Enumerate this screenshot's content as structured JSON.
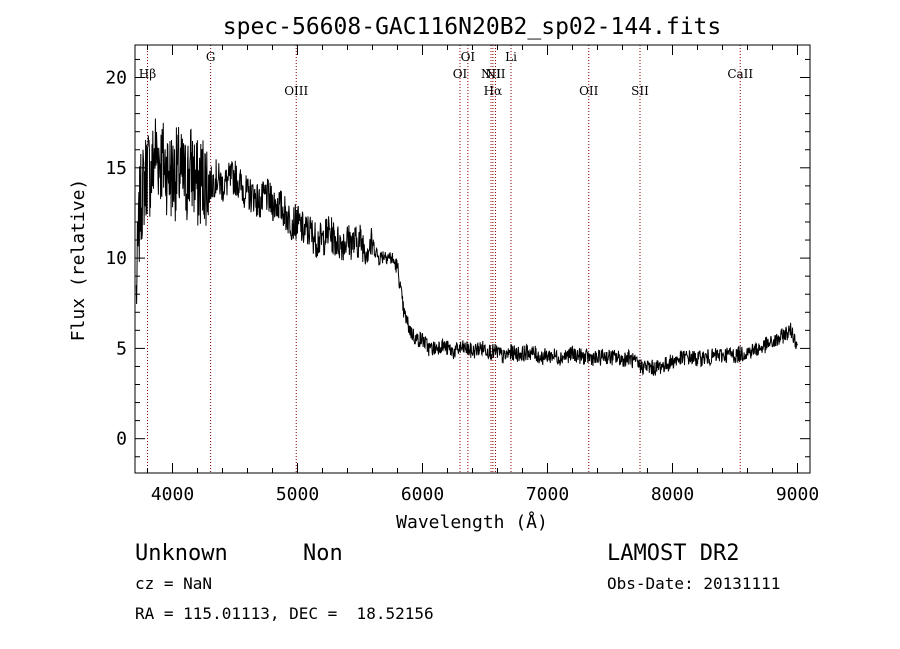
{
  "chart_data": {
    "type": "line",
    "title": "spec-56608-GAC116N20B2_sp02-144.fits",
    "xlabel": "Wavelength (Å)",
    "ylabel": "Flux (relative)",
    "xlim": [
      3700,
      9100
    ],
    "ylim": [
      -1.9,
      21.8
    ],
    "xticks": [
      4000,
      5000,
      6000,
      7000,
      8000,
      9000
    ],
    "yticks": [
      0,
      5,
      10,
      15,
      20
    ],
    "grid": false,
    "line_color": "#000000",
    "marker_color": "#8b0000",
    "lines": [
      {
        "label": "Hβ",
        "x": 3800,
        "row": 1
      },
      {
        "label": "G",
        "x": 4305,
        "row": 0
      },
      {
        "label": "OIII",
        "x": 4990,
        "row": 2
      },
      {
        "label": "OI",
        "x": 6300,
        "row": 1
      },
      {
        "label": "OI",
        "x": 6363,
        "row": 0
      },
      {
        "label": "NII",
        "x": 6548,
        "row": 1
      },
      {
        "label": "Hα",
        "x": 6563,
        "row": 2
      },
      {
        "label": "NII",
        "x": 6584,
        "row": 1
      },
      {
        "label": "Li",
        "x": 6708,
        "row": 0
      },
      {
        "label": "OII",
        "x": 7330,
        "row": 2
      },
      {
        "label": "SII",
        "x": 7740,
        "row": 2
      },
      {
        "label": "CaII",
        "x": 8542,
        "row": 1
      }
    ],
    "series": [
      {
        "x": [
          3710,
          3740,
          3770,
          3800,
          3830,
          3860,
          3900,
          3950,
          4000,
          4050,
          4100,
          4150,
          4200,
          4250,
          4300,
          4350,
          4400,
          4450,
          4500,
          4550,
          4600,
          4650,
          4700,
          4750,
          4800,
          4850,
          4900,
          4950,
          5000,
          5050,
          5100,
          5150,
          5200,
          5250,
          5300,
          5350,
          5400,
          5450,
          5500,
          5550,
          5600,
          5650,
          5700,
          5750,
          5800,
          5850,
          5900,
          5950,
          6000,
          6050,
          6100,
          6150,
          6200,
          6250,
          6300,
          6350,
          6400,
          6450,
          6500,
          6550,
          6600,
          6650,
          6700,
          6750,
          6800,
          6850,
          6900,
          6950,
          7000,
          7050,
          7100,
          7150,
          7200,
          7250,
          7300,
          7350,
          7400,
          7450,
          7500,
          7550,
          7600,
          7650,
          7700,
          7750,
          7800,
          7850,
          7900,
          7950,
          8000,
          8050,
          8100,
          8150,
          8200,
          8250,
          8300,
          8350,
          8400,
          8450,
          8500,
          8550,
          8600,
          8650,
          8700,
          8750,
          8800,
          8850,
          8900,
          8950,
          9000
        ],
        "y": [
          8.0,
          13.0,
          14.0,
          15.0,
          14.5,
          16.0,
          15.5,
          15.0,
          14.5,
          14.8,
          14.2,
          15.0,
          14.0,
          14.5,
          14.0,
          14.5,
          14.0,
          14.3,
          14.5,
          14.0,
          13.5,
          13.5,
          13.0,
          13.5,
          13.0,
          13.0,
          12.5,
          12.0,
          12.0,
          11.5,
          11.5,
          11.0,
          11.0,
          11.5,
          11.0,
          10.8,
          11.0,
          10.8,
          11.0,
          10.5,
          10.8,
          10.0,
          10.2,
          10.0,
          9.5,
          7.0,
          6.0,
          5.5,
          5.5,
          5.0,
          5.0,
          5.2,
          5.0,
          4.8,
          5.0,
          5.0,
          4.8,
          5.0,
          5.0,
          4.8,
          4.8,
          4.5,
          4.8,
          4.7,
          4.7,
          4.8,
          4.7,
          4.5,
          4.6,
          4.6,
          4.5,
          4.6,
          4.7,
          4.6,
          4.5,
          4.5,
          4.4,
          4.6,
          4.5,
          4.5,
          4.4,
          4.5,
          4.2,
          4.0,
          4.0,
          3.9,
          4.0,
          4.1,
          4.3,
          4.4,
          4.5,
          4.5,
          4.4,
          4.5,
          4.5,
          4.6,
          4.6,
          4.7,
          4.6,
          4.7,
          4.8,
          4.9,
          5.0,
          5.2,
          5.3,
          5.5,
          5.8,
          6.0,
          5.2
        ]
      }
    ]
  },
  "footer": {
    "class_label": "Unknown",
    "subclass_label": "Non",
    "survey": "LAMOST DR2",
    "cz": "cz = NaN",
    "obs_date": "Obs-Date: 20131111",
    "coords": "RA = 115.01113, DEC =  18.52156"
  }
}
